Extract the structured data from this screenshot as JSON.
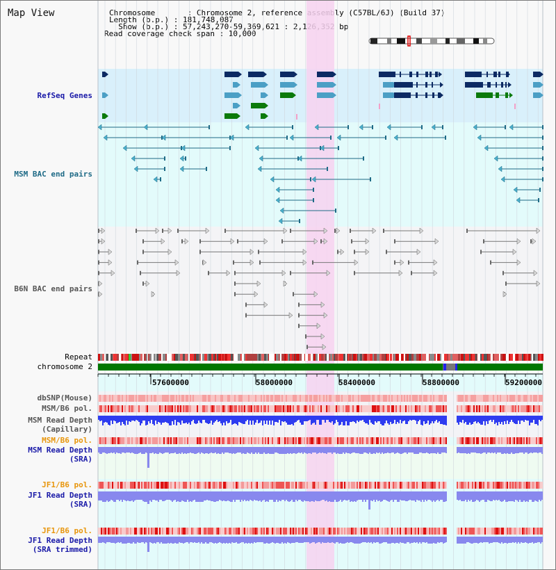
{
  "page": {
    "title": "Map View"
  },
  "header": {
    "chromosome_line": "Chromosome       : Chromosome 2, reference assembly (C57BL/6J) (Build 37)",
    "length_line": "Length (b.p.) : 181,748,087",
    "show_line": "  Show (b.p.) : 57,243,270-59,369,621 : 2,126,352 bp",
    "coverage_line": "Read coverage check span : 10,000"
  },
  "colors": {
    "refseq_bg": "#d9f0fb",
    "msm_bac_bg": "#e3fbfb",
    "b6n_bac_bg": "#f4f4f6",
    "depth_bg": "#effbf1",
    "highlight": "#f7d2f0",
    "chromosome_bar": "#007700",
    "gene_navy": "#0c2a63",
    "gene_teal": "#4b9fc5",
    "gene_green": "#0b7a0b",
    "bac_line": "#1e6a86",
    "b6n_line": "#777777",
    "depth_capillary": "#2e3cf0",
    "depth_sra": "#8888ee",
    "label_navy": "#1a1aa8",
    "label_teal": "#1e6a86",
    "label_grey": "#555555",
    "label_orange": "#e8960c"
  },
  "tracks": {
    "refseq": "RefSeq Genes",
    "msm_bac": "MSM BAC end pairs",
    "b6n_bac": "B6N BAC end pairs",
    "repeat": "Repeat",
    "chromosome": "chromosome 2",
    "dbsnp": "dbSNP(Mouse)",
    "msm_b6_pol": "MSM/B6 pol.",
    "msm_read_depth": "MSM Read Depth",
    "capillary": "(Capillary)",
    "msm_b6_pol_2": "MSM/B6 pol.",
    "msm_read_depth_2": "MSM Read Depth",
    "sra": "(SRA)",
    "jf1_b6_pol": "JF1/B6 pol.",
    "jf1_read_depth": "JF1 Read Depth",
    "sra_2": "(SRA)",
    "jf1_b6_pol_2": "JF1/B6 pol.",
    "jf1_read_depth_2": "JF1 Read Depth",
    "sra_trimmed": "(SRA trimmed)"
  },
  "axis": {
    "ticks": [
      "57600000",
      "58000000",
      "58400000",
      "58800000",
      "59200000"
    ]
  }
}
